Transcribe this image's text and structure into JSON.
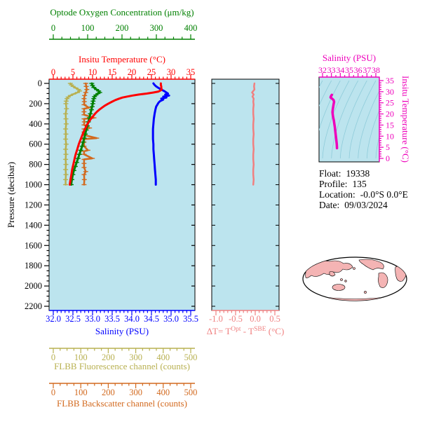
{
  "colors": {
    "plot_bg": "#bce4ee",
    "oxygen": "#008000",
    "temperature": "#ff0000",
    "salinity": "#0000ff",
    "fluorescence": "#b8b050",
    "backscatter": "#d2691e",
    "delta_t": "#f08080",
    "ts_magenta": "#ee00bb",
    "contour": "#8fccda",
    "map_land": "#f4b4b4",
    "black": "#000000"
  },
  "info": {
    "lines": [
      {
        "label": "Float:",
        "value": "19338"
      },
      {
        "label": "Profile:",
        "value": "135"
      },
      {
        "label": "Location:",
        "value": "-0.0°S   0.0°E"
      },
      {
        "label": "Date:",
        "value": "09/03/2024"
      }
    ]
  },
  "chart_data": [
    {
      "id": "main_profiles",
      "type": "line",
      "title": "Argo float multi-parameter vertical profiles",
      "y_axis": {
        "label": "Pressure (decibar)",
        "range": [
          0,
          2200
        ],
        "ticks": [
          "0",
          "200",
          "400",
          "600",
          "800",
          "1000",
          "1200",
          "1400",
          "1600",
          "1800",
          "2000",
          "2200"
        ]
      },
      "x_axes": {
        "oxygen": {
          "label": "Optode Oxygen Concentration (μm/kg)",
          "range": [
            0,
            400
          ],
          "ticks": [
            "0",
            "100",
            "200",
            "300",
            "400"
          ]
        },
        "temperature": {
          "label": "Insitu Temperature (°C)",
          "range": [
            0,
            35
          ],
          "ticks": [
            "0",
            "5",
            "10",
            "15",
            "20",
            "25",
            "30",
            "35"
          ]
        },
        "salinity": {
          "label": "Salinity (PSU)",
          "range": [
            32,
            35.5
          ],
          "ticks": [
            "32.0",
            "32.5",
            "33.0",
            "33.5",
            "34.0",
            "34.5",
            "35.0",
            "35.5"
          ]
        },
        "fluorescence": {
          "label": "FLBB Fluorescence channel (counts)",
          "range": [
            0,
            500
          ],
          "ticks": [
            "0",
            "100",
            "200",
            "300",
            "400",
            "500"
          ]
        },
        "backscatter": {
          "label": "FLBB Backscatter channel (counts)",
          "range": [
            0,
            500
          ],
          "ticks": [
            "0",
            "100",
            "200",
            "300",
            "400",
            "500"
          ]
        }
      },
      "series": [
        {
          "name": "fluorescence",
          "axis": "fluorescence",
          "markers": true,
          "points": [
            [
              0,
              62
            ],
            [
              15,
              66
            ],
            [
              30,
              72
            ],
            [
              45,
              82
            ],
            [
              60,
              92
            ],
            [
              75,
              96
            ],
            [
              90,
              88
            ],
            [
              105,
              74
            ],
            [
              120,
              62
            ],
            [
              135,
              54
            ],
            [
              150,
              50
            ],
            [
              175,
              47
            ],
            [
              200,
              46
            ],
            [
              250,
              48
            ],
            [
              300,
              45
            ],
            [
              350,
              46
            ],
            [
              400,
              47
            ],
            [
              450,
              45
            ],
            [
              500,
              46
            ],
            [
              550,
              45
            ],
            [
              600,
              47
            ],
            [
              650,
              45
            ],
            [
              700,
              46
            ],
            [
              750,
              45
            ],
            [
              800,
              46
            ],
            [
              850,
              45
            ],
            [
              900,
              46
            ],
            [
              950,
              45
            ],
            [
              1000,
              45
            ]
          ]
        },
        {
          "name": "backscatter",
          "axis": "backscatter",
          "markers": true,
          "points": [
            [
              0,
              118
            ],
            [
              30,
              120
            ],
            [
              60,
              122
            ],
            [
              90,
              118
            ],
            [
              120,
              114
            ],
            [
              150,
              112
            ],
            [
              180,
              113
            ],
            [
              210,
              112
            ],
            [
              240,
              130
            ],
            [
              250,
              112
            ],
            [
              280,
              112
            ],
            [
              310,
              112
            ],
            [
              340,
              148
            ],
            [
              350,
              112
            ],
            [
              380,
              113
            ],
            [
              410,
              112
            ],
            [
              440,
              132
            ],
            [
              450,
              112
            ],
            [
              480,
              112
            ],
            [
              510,
              112
            ],
            [
              540,
              158
            ],
            [
              550,
              113
            ],
            [
              580,
              112
            ],
            [
              620,
              112
            ],
            [
              660,
              126
            ],
            [
              670,
              112
            ],
            [
              700,
              112
            ],
            [
              740,
              142
            ],
            [
              750,
              112
            ],
            [
              790,
              112
            ],
            [
              830,
              112
            ],
            [
              870,
              118
            ],
            [
              900,
              112
            ],
            [
              950,
              113
            ],
            [
              1000,
              112
            ]
          ]
        },
        {
          "name": "oxygen",
          "axis": "oxygen",
          "markers": true,
          "points": [
            [
              0,
              112
            ],
            [
              20,
              114
            ],
            [
              40,
              118
            ],
            [
              60,
              126
            ],
            [
              75,
              132
            ],
            [
              90,
              135
            ],
            [
              100,
              130
            ],
            [
              115,
              124
            ],
            [
              130,
              120
            ],
            [
              150,
              118
            ],
            [
              175,
              116
            ],
            [
              200,
              115
            ],
            [
              230,
              113
            ],
            [
              260,
              111
            ],
            [
              300,
              108
            ],
            [
              340,
              105
            ],
            [
              380,
              102
            ],
            [
              420,
              99
            ],
            [
              460,
              96
            ],
            [
              500,
              93
            ],
            [
              540,
              90
            ],
            [
              580,
              87
            ],
            [
              620,
              84
            ],
            [
              660,
              80
            ],
            [
              700,
              76
            ],
            [
              740,
              72
            ],
            [
              780,
              68
            ],
            [
              820,
              64
            ],
            [
              860,
              60
            ],
            [
              900,
              57
            ],
            [
              950,
              54
            ],
            [
              1000,
              52
            ]
          ]
        },
        {
          "name": "salinity",
          "axis": "salinity",
          "markers": false,
          "points": [
            [
              0,
              34.55
            ],
            [
              15,
              34.58
            ],
            [
              30,
              34.62
            ],
            [
              45,
              34.68
            ],
            [
              60,
              34.75
            ],
            [
              75,
              34.82
            ],
            [
              90,
              34.88
            ],
            [
              100,
              34.92
            ],
            [
              110,
              34.85
            ],
            [
              120,
              34.95
            ],
            [
              130,
              34.8
            ],
            [
              140,
              34.88
            ],
            [
              150,
              34.75
            ],
            [
              160,
              34.8
            ],
            [
              175,
              34.72
            ],
            [
              190,
              34.68
            ],
            [
              210,
              34.65
            ],
            [
              230,
              34.62
            ],
            [
              260,
              34.6
            ],
            [
              300,
              34.58
            ],
            [
              350,
              34.56
            ],
            [
              400,
              34.55
            ],
            [
              450,
              34.54
            ],
            [
              500,
              34.54
            ],
            [
              550,
              34.54
            ],
            [
              600,
              34.55
            ],
            [
              650,
              34.55
            ],
            [
              700,
              34.56
            ],
            [
              750,
              34.57
            ],
            [
              800,
              34.58
            ],
            [
              850,
              34.59
            ],
            [
              900,
              34.6
            ],
            [
              950,
              34.61
            ],
            [
              1000,
              34.61
            ]
          ]
        },
        {
          "name": "temperature",
          "axis": "temperature",
          "markers": false,
          "points": [
            [
              0,
              27.4
            ],
            [
              15,
              27.4
            ],
            [
              30,
              27.5
            ],
            [
              45,
              27.5
            ],
            [
              60,
              27.6
            ],
            [
              70,
              27.3
            ],
            [
              80,
              26.8
            ],
            [
              90,
              25.5
            ],
            [
              100,
              23.8
            ],
            [
              110,
              21.8
            ],
            [
              120,
              20.2
            ],
            [
              130,
              18.8
            ],
            [
              140,
              17.6
            ],
            [
              150,
              16.8
            ],
            [
              165,
              15.8
            ],
            [
              180,
              15.0
            ],
            [
              200,
              14.0
            ],
            [
              220,
              13.1
            ],
            [
              240,
              12.4
            ],
            [
              260,
              11.7
            ],
            [
              280,
              11.1
            ],
            [
              300,
              10.6
            ],
            [
              330,
              10.0
            ],
            [
              360,
              9.4
            ],
            [
              400,
              8.7
            ],
            [
              440,
              8.2
            ],
            [
              480,
              7.7
            ],
            [
              520,
              7.3
            ],
            [
              560,
              6.9
            ],
            [
              600,
              6.5
            ],
            [
              650,
              6.1
            ],
            [
              700,
              5.7
            ],
            [
              750,
              5.4
            ],
            [
              800,
              5.1
            ],
            [
              850,
              4.8
            ],
            [
              900,
              4.6
            ],
            [
              950,
              4.4
            ],
            [
              1000,
              4.2
            ]
          ]
        }
      ]
    },
    {
      "id": "delta_t",
      "type": "line",
      "x_axis": {
        "label": "ΔT= T^Opt - T^SBE (°C)",
        "label_parts": {
          "p1": "ΔT= T",
          "sup1": "Opt",
          "p2": " - T",
          "sup2": "SBE",
          "p3": " (°C)"
        },
        "range": [
          -1.0,
          0.5
        ],
        "ticks": [
          "-1.0",
          "-0.5",
          "0.0",
          "0.5"
        ]
      },
      "y_axis": {
        "label": "Pressure (decibar)",
        "range": [
          0,
          2200
        ]
      },
      "series": [
        {
          "name": "delta_t",
          "points": [
            [
              0,
              -0.02
            ],
            [
              30,
              -0.03
            ],
            [
              60,
              -0.02
            ],
            [
              90,
              -0.08
            ],
            [
              110,
              -0.04
            ],
            [
              130,
              -0.07
            ],
            [
              150,
              -0.04
            ],
            [
              180,
              -0.05
            ],
            [
              210,
              -0.04
            ],
            [
              250,
              -0.05
            ],
            [
              300,
              -0.05
            ],
            [
              350,
              -0.04
            ],
            [
              400,
              -0.05
            ],
            [
              450,
              -0.05
            ],
            [
              500,
              -0.04
            ],
            [
              550,
              -0.05
            ],
            [
              600,
              -0.05
            ],
            [
              650,
              -0.04
            ],
            [
              700,
              -0.05
            ],
            [
              750,
              -0.05
            ],
            [
              800,
              -0.04
            ],
            [
              850,
              -0.05
            ],
            [
              900,
              -0.05
            ],
            [
              950,
              -0.04
            ],
            [
              1000,
              -0.05
            ]
          ]
        }
      ]
    },
    {
      "id": "ts_diagram",
      "type": "line",
      "x_axis": {
        "label": "Salinity (PSU)",
        "range": [
          32,
          38
        ],
        "ticks": [
          "32",
          "33",
          "34",
          "35",
          "36",
          "37",
          "38"
        ]
      },
      "y_axis": {
        "label": "Insitu Temperature (°C)",
        "range": [
          0,
          35
        ],
        "ticks": [
          "0",
          "5",
          "10",
          "15",
          "20",
          "25",
          "30",
          "35"
        ]
      },
      "series": [
        {
          "name": "ts_curve",
          "points": [
            [
              33.05,
              28.6
            ],
            [
              32.95,
              28.0
            ],
            [
              32.9,
              27.4
            ],
            [
              33.1,
              26.8
            ],
            [
              33.25,
              26.2
            ],
            [
              33.3,
              25.4
            ],
            [
              33.25,
              24.4
            ],
            [
              33.2,
              23.2
            ],
            [
              33.15,
              22.0
            ],
            [
              33.12,
              20.8
            ],
            [
              33.15,
              19.6
            ],
            [
              33.2,
              18.4
            ],
            [
              33.28,
              17.0
            ],
            [
              33.33,
              15.6
            ],
            [
              33.38,
              14.2
            ],
            [
              33.42,
              12.8
            ],
            [
              33.46,
              11.4
            ],
            [
              33.5,
              10.0
            ],
            [
              33.54,
              8.8
            ],
            [
              33.57,
              7.6
            ],
            [
              33.6,
              6.5
            ],
            [
              33.62,
              5.5
            ],
            [
              33.63,
              4.6
            ]
          ]
        }
      ]
    }
  ]
}
